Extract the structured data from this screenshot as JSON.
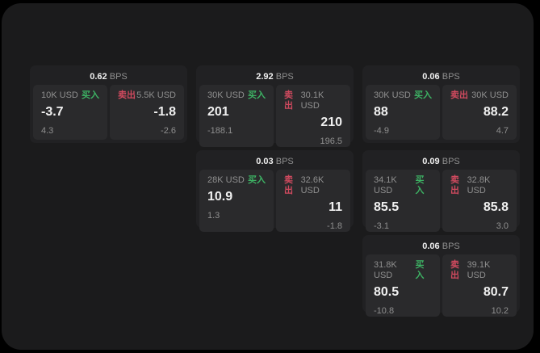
{
  "theme": {
    "background": "#000000",
    "surface": "#1b1b1c",
    "card": "#212123",
    "panel": "#2a2a2c",
    "buy_color": "#3db264",
    "sell_color": "#d04a5f",
    "text_primary": "#f0f0f0",
    "text_muted": "#8f8f8f"
  },
  "labels": {
    "buy": "买入",
    "sell": "卖出",
    "bps": "BPS"
  },
  "cards": [
    {
      "row": 1,
      "col": 1,
      "bps": "0.62",
      "buy": {
        "amount": "10K USD",
        "price": "-3.7",
        "delta": "4.3"
      },
      "sell": {
        "amount": "5.5K USD",
        "price": "-1.8",
        "delta": "-2.6"
      }
    },
    {
      "row": 1,
      "col": 2,
      "bps": "2.92",
      "buy": {
        "amount": "30K USD",
        "price": "201",
        "delta": "-188.1"
      },
      "sell": {
        "amount": "30.1K USD",
        "price": "210",
        "delta": "196.5"
      }
    },
    {
      "row": 1,
      "col": 3,
      "bps": "0.06",
      "buy": {
        "amount": "30K USD",
        "price": "88",
        "delta": "-4.9"
      },
      "sell": {
        "amount": "30K USD",
        "price": "88.2",
        "delta": "4.7"
      }
    },
    {
      "row": 2,
      "col": 2,
      "bps": "0.03",
      "buy": {
        "amount": "28K USD",
        "price": "10.9",
        "delta": "1.3"
      },
      "sell": {
        "amount": "32.6K USD",
        "price": "11",
        "delta": "-1.8"
      }
    },
    {
      "row": 2,
      "col": 3,
      "bps": "0.09",
      "buy": {
        "amount": "34.1K USD",
        "price": "85.5",
        "delta": "-3.1"
      },
      "sell": {
        "amount": "32.8K USD",
        "price": "85.8",
        "delta": "3.0"
      }
    },
    {
      "row": 3,
      "col": 3,
      "bps": "0.06",
      "buy": {
        "amount": "31.8K USD",
        "price": "80.5",
        "delta": "-10.8"
      },
      "sell": {
        "amount": "39.1K USD",
        "price": "80.7",
        "delta": "10.2"
      }
    }
  ]
}
